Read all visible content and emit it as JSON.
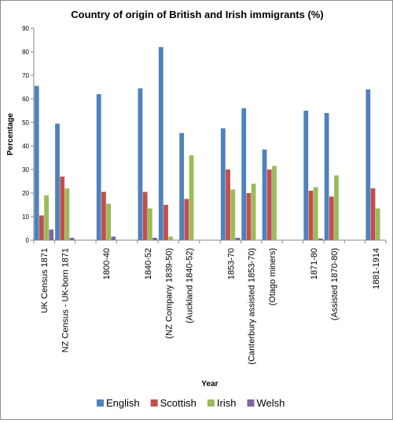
{
  "chart_data": {
    "type": "bar",
    "title": "Country of origin of British and Irish immigrants (%)",
    "xlabel": "Year",
    "ylabel": "Percentage",
    "ylim": [
      0,
      90
    ],
    "yticks": [
      "0",
      "10",
      "20",
      "30",
      "40",
      "50",
      "60",
      "70",
      "80",
      "90"
    ],
    "grid": false,
    "legend_position": "bottom",
    "categories": [
      "UK Census 1871",
      "NZ Census - UK-born 1871",
      "",
      "1800-40",
      "",
      "1840-52",
      "(NZ Company 1839-50)",
      "(Auckland 1840-52)",
      "",
      "1853-70",
      "(Canterbury assisted 1853-70)",
      "(Otago miners)",
      "",
      "1871-80",
      "(Assisted 1870-80)",
      "",
      "1881-1914"
    ],
    "series": [
      {
        "name": "English",
        "color": "#4f81bd",
        "values": [
          65.5,
          49.5,
          null,
          62,
          null,
          64.5,
          82,
          45.5,
          null,
          47.5,
          56,
          38.5,
          null,
          55,
          54,
          null,
          64
        ]
      },
      {
        "name": "Scottish",
        "color": "#c0504d",
        "values": [
          10.5,
          27,
          null,
          20.5,
          null,
          20.5,
          15,
          17.5,
          null,
          30,
          20,
          30,
          null,
          21,
          18.5,
          null,
          22
        ]
      },
      {
        "name": "Irish",
        "color": "#9bbb59",
        "values": [
          19,
          22,
          null,
          15.5,
          null,
          13.5,
          1.5,
          36,
          null,
          21.5,
          24,
          31.5,
          null,
          22.5,
          27.5,
          null,
          13.5
        ]
      },
      {
        "name": "Welsh",
        "color": "#8064a2",
        "values": [
          4.5,
          1,
          null,
          1.5,
          null,
          1,
          null,
          null,
          null,
          1,
          null,
          null,
          null,
          0.7,
          null,
          null,
          null
        ]
      }
    ]
  }
}
